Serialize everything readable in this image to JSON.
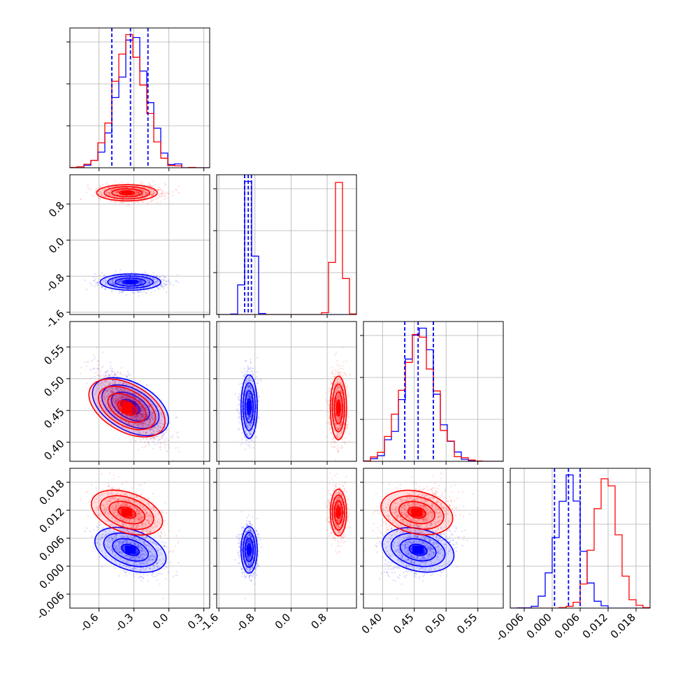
{
  "chart_data": {
    "type": "corner",
    "grid": true,
    "series": [
      {
        "name": "",
        "color": "#0000ff"
      },
      {
        "name": "",
        "color": "#ff0000"
      }
    ],
    "params": [
      {
        "id": "p0",
        "lim": [
          -0.85,
          0.35
        ],
        "ticks": [
          "-0.6",
          "-0.3",
          "0.0",
          "0.3"
        ],
        "tick_values": [
          -0.6,
          -0.3,
          0.0,
          0.3
        ],
        "blue": {
          "mean": -0.33,
          "std": 0.13
        },
        "red": {
          "mean": -0.36,
          "std": 0.13
        },
        "quantiles": [
          -0.49,
          -0.33,
          -0.18
        ]
      },
      {
        "id": "p1",
        "lim": [
          -1.65,
          1.45
        ],
        "ticks": [
          "-1.6",
          "-0.8",
          "0.0",
          "0.8"
        ],
        "tick_values": [
          -1.6,
          -0.8,
          0.0,
          0.8
        ],
        "blue": {
          "mean": -0.93,
          "std": 0.09
        },
        "red": {
          "mean": 1.05,
          "std": 0.09
        },
        "quantiles": [
          -1.03,
          -0.95,
          -0.88
        ]
      },
      {
        "id": "p2",
        "lim": [
          0.37,
          0.59
        ],
        "ticks": [
          "0.40",
          "0.45",
          "0.50",
          "0.55"
        ],
        "tick_values": [
          0.4,
          0.45,
          0.5,
          0.55
        ],
        "blue": {
          "mean": 0.456,
          "std": 0.025
        },
        "red": {
          "mean": 0.454,
          "std": 0.025
        },
        "quantiles": [
          0.435,
          0.456,
          0.48
        ]
      },
      {
        "id": "p3",
        "lim": [
          -0.009,
          0.021
        ],
        "ticks": [
          "-0.006",
          "0.000",
          "0.006",
          "0.012",
          "0.018"
        ],
        "tick_values": [
          -0.006,
          0.0,
          0.006,
          0.012,
          0.018
        ],
        "blue": {
          "mean": 0.0035,
          "std": 0.0025
        },
        "red": {
          "mean": 0.0115,
          "std": 0.0025
        },
        "quantiles": [
          0.0005,
          0.0035,
          0.006
        ]
      }
    ],
    "correlations": {
      "p0_p2": -0.75,
      "p0_p3": -0.45,
      "p2_p3": -0.3
    }
  }
}
